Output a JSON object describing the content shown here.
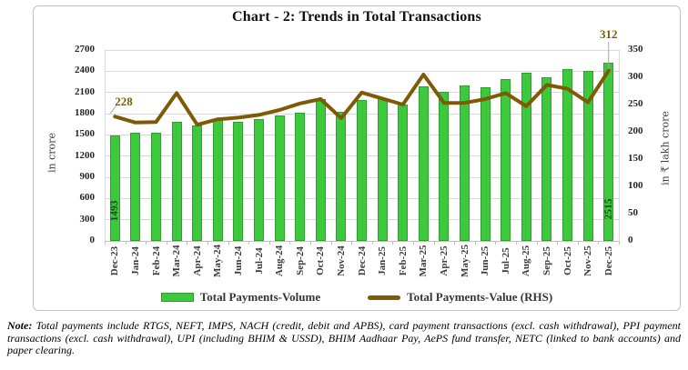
{
  "title": "Chart - 2: Trends in Total Transactions",
  "chart_data": {
    "type": "bar",
    "subtype": "combo bar+line, dual axis",
    "categories": [
      "Dec-23",
      "Jan-24",
      "Feb-24",
      "Mar-24",
      "Apr-24",
      "May-24",
      "Jun-24",
      "Jul-24",
      "Aug-24",
      "Sep-24",
      "Oct-24",
      "Nov-24",
      "Dec-24",
      "Jan-25",
      "Feb-25",
      "Mar-25",
      "Apr-25",
      "May-25",
      "Jun-25",
      "Jul-25",
      "Aug-25",
      "Sep-25",
      "Oct-25",
      "Nov-25",
      "Dec-25"
    ],
    "series": [
      {
        "name": "Total Payments-Volume",
        "type": "bar",
        "axis": "left",
        "values": [
          1493,
          1530,
          1525,
          1685,
          1628,
          1706,
          1690,
          1722,
          1770,
          1810,
          2000,
          1830,
          1990,
          2020,
          1930,
          2185,
          2105,
          2200,
          2175,
          2285,
          2375,
          2315,
          2435,
          2410,
          2515
        ]
      },
      {
        "name": "Total Payments-Value (RHS)",
        "type": "line",
        "axis": "right",
        "values": [
          228,
          217,
          218,
          271,
          213,
          223,
          226,
          231,
          240,
          252,
          260,
          225,
          272,
          261,
          250,
          305,
          253,
          253,
          260,
          271,
          247,
          286,
          279,
          254,
          312
        ]
      }
    ],
    "left_axis": {
      "title": "in crore",
      "min": 0,
      "max": 2700,
      "step": 300
    },
    "right_axis": {
      "title": "in ₹ lakh crore",
      "min": 0,
      "max": 350,
      "step": 50
    },
    "grid": true,
    "legend_position": "bottom",
    "annotations": {
      "first_bar_label": "1493",
      "last_bar_label": "2515",
      "first_line_label": "228",
      "last_line_label": "312"
    },
    "colors": {
      "bar_fill": "#3dc83d",
      "bar_border": "#2f9e2f",
      "line": "#7d5a04",
      "grid": "#d9d9d9",
      "bar_annotation_text": "#1d4a1d",
      "line_annotation_text": "#7d5a04"
    }
  },
  "legend": {
    "volume_label": "Total Payments-Volume",
    "value_label": "Total Payments-Value (RHS)"
  },
  "note": {
    "label": "Note:",
    "text": "Total payments include RTGS, NEFT, IMPS, NACH (credit, debit and APBS), card payment transactions (excl. cash withdrawal), PPI payment transactions (excl. cash withdrawal), UPI (including BHIM & USSD), BHIM Aadhaar Pay, AePS fund transfer, NETC (linked to bank accounts) and paper clearing."
  }
}
